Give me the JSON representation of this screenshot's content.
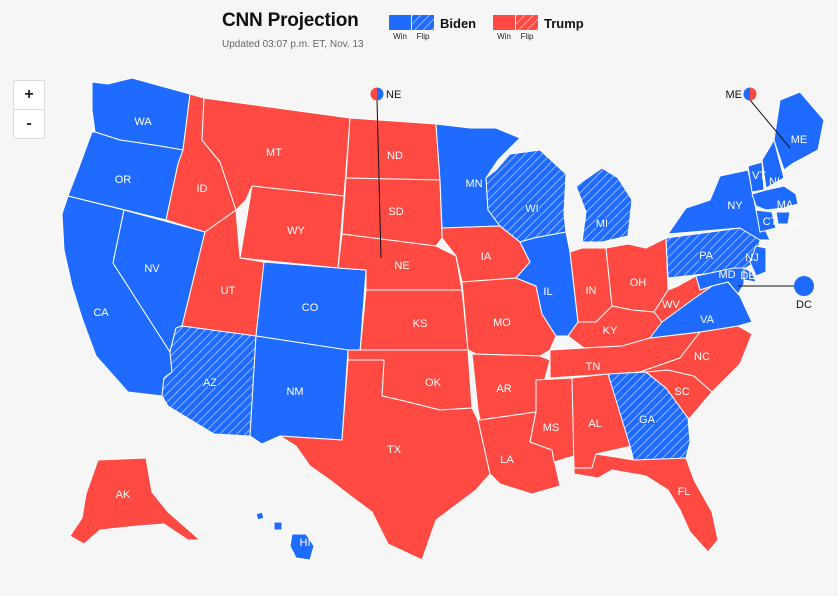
{
  "header": {
    "title": "CNN Projection",
    "updated": "Updated 03:07 p.m. ET, Nov. 13"
  },
  "legend": {
    "biden": {
      "name": "Biden",
      "win_label": "Win",
      "flip_label": "Flip",
      "color": "#1f6bff"
    },
    "trump": {
      "name": "Trump",
      "win_label": "Win",
      "flip_label": "Flip",
      "color": "#ff4a43"
    }
  },
  "zoom": {
    "in_label": "+",
    "out_label": "-"
  },
  "states": [
    {
      "abbr": "WA",
      "party": "biden",
      "flip": false
    },
    {
      "abbr": "OR",
      "party": "biden",
      "flip": false
    },
    {
      "abbr": "CA",
      "party": "biden",
      "flip": false
    },
    {
      "abbr": "NV",
      "party": "biden",
      "flip": false
    },
    {
      "abbr": "ID",
      "party": "trump",
      "flip": false
    },
    {
      "abbr": "MT",
      "party": "trump",
      "flip": false
    },
    {
      "abbr": "WY",
      "party": "trump",
      "flip": false
    },
    {
      "abbr": "UT",
      "party": "trump",
      "flip": false
    },
    {
      "abbr": "AZ",
      "party": "biden",
      "flip": true
    },
    {
      "abbr": "CO",
      "party": "biden",
      "flip": false
    },
    {
      "abbr": "NM",
      "party": "biden",
      "flip": false
    },
    {
      "abbr": "ND",
      "party": "trump",
      "flip": false
    },
    {
      "abbr": "SD",
      "party": "trump",
      "flip": false
    },
    {
      "abbr": "NE",
      "party": "trump",
      "flip": false
    },
    {
      "abbr": "KS",
      "party": "trump",
      "flip": false
    },
    {
      "abbr": "OK",
      "party": "trump",
      "flip": false
    },
    {
      "abbr": "TX",
      "party": "trump",
      "flip": false
    },
    {
      "abbr": "MN",
      "party": "biden",
      "flip": false
    },
    {
      "abbr": "IA",
      "party": "trump",
      "flip": false
    },
    {
      "abbr": "MO",
      "party": "trump",
      "flip": false
    },
    {
      "abbr": "AR",
      "party": "trump",
      "flip": false
    },
    {
      "abbr": "LA",
      "party": "trump",
      "flip": false
    },
    {
      "abbr": "WI",
      "party": "biden",
      "flip": true
    },
    {
      "abbr": "IL",
      "party": "biden",
      "flip": false
    },
    {
      "abbr": "MI",
      "party": "biden",
      "flip": true
    },
    {
      "abbr": "IN",
      "party": "trump",
      "flip": false
    },
    {
      "abbr": "OH",
      "party": "trump",
      "flip": false
    },
    {
      "abbr": "KY",
      "party": "trump",
      "flip": false
    },
    {
      "abbr": "TN",
      "party": "trump",
      "flip": false
    },
    {
      "abbr": "MS",
      "party": "trump",
      "flip": false
    },
    {
      "abbr": "AL",
      "party": "trump",
      "flip": false
    },
    {
      "abbr": "GA",
      "party": "biden",
      "flip": true
    },
    {
      "abbr": "FL",
      "party": "trump",
      "flip": false
    },
    {
      "abbr": "SC",
      "party": "trump",
      "flip": false
    },
    {
      "abbr": "NC",
      "party": "trump",
      "flip": false
    },
    {
      "abbr": "VA",
      "party": "biden",
      "flip": false
    },
    {
      "abbr": "WV",
      "party": "trump",
      "flip": false
    },
    {
      "abbr": "PA",
      "party": "biden",
      "flip": true
    },
    {
      "abbr": "NY",
      "party": "biden",
      "flip": false
    },
    {
      "abbr": "VT",
      "party": "biden",
      "flip": false
    },
    {
      "abbr": "NH",
      "party": "biden",
      "flip": false
    },
    {
      "abbr": "ME",
      "party": "biden",
      "flip": false
    },
    {
      "abbr": "MA",
      "party": "biden",
      "flip": false
    },
    {
      "abbr": "RI",
      "party": "biden",
      "flip": false
    },
    {
      "abbr": "CT",
      "party": "biden",
      "flip": false
    },
    {
      "abbr": "NJ",
      "party": "biden",
      "flip": false
    },
    {
      "abbr": "DE",
      "party": "biden",
      "flip": false
    },
    {
      "abbr": "MD",
      "party": "biden",
      "flip": false
    },
    {
      "abbr": "AK",
      "party": "trump",
      "flip": false
    },
    {
      "abbr": "HI",
      "party": "biden",
      "flip": false
    }
  ],
  "split_states": [
    {
      "abbr": "NE",
      "split": [
        "biden",
        "trump"
      ]
    },
    {
      "abbr": "ME",
      "split": [
        "trump",
        "biden"
      ]
    }
  ],
  "dc": {
    "abbr": "DC",
    "party": "biden"
  }
}
